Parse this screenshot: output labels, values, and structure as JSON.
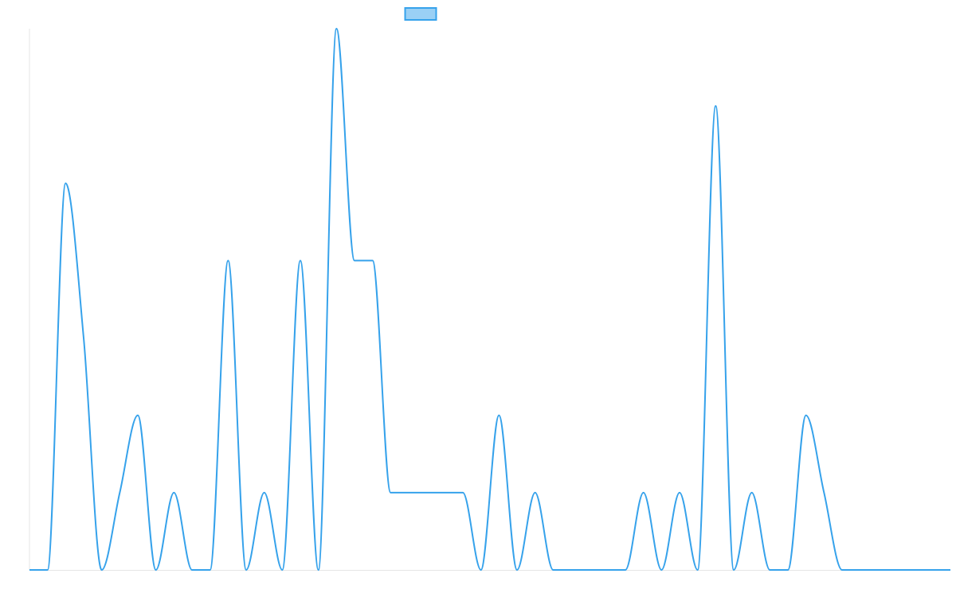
{
  "chart_data": {
    "type": "line",
    "title": "",
    "xlabel": "",
    "ylabel": "",
    "ylim": [
      0,
      7
    ],
    "grid": false,
    "legend": "top",
    "interpolation": "monotone",
    "series": [
      {
        "color": "#36a2eb",
        "fill_color": "#9ad0f5",
        "values": [
          0,
          0,
          5,
          3,
          0,
          1,
          2,
          0,
          1,
          0,
          0,
          4,
          0,
          1,
          0,
          4,
          0,
          7,
          4,
          4,
          1,
          1,
          1,
          1,
          1,
          0,
          2,
          0,
          1,
          0,
          0,
          0,
          0,
          0,
          1,
          0,
          1,
          0,
          6,
          0,
          1,
          0,
          0,
          2,
          1,
          0,
          0,
          0,
          0,
          0,
          0,
          0
        ]
      }
    ]
  }
}
